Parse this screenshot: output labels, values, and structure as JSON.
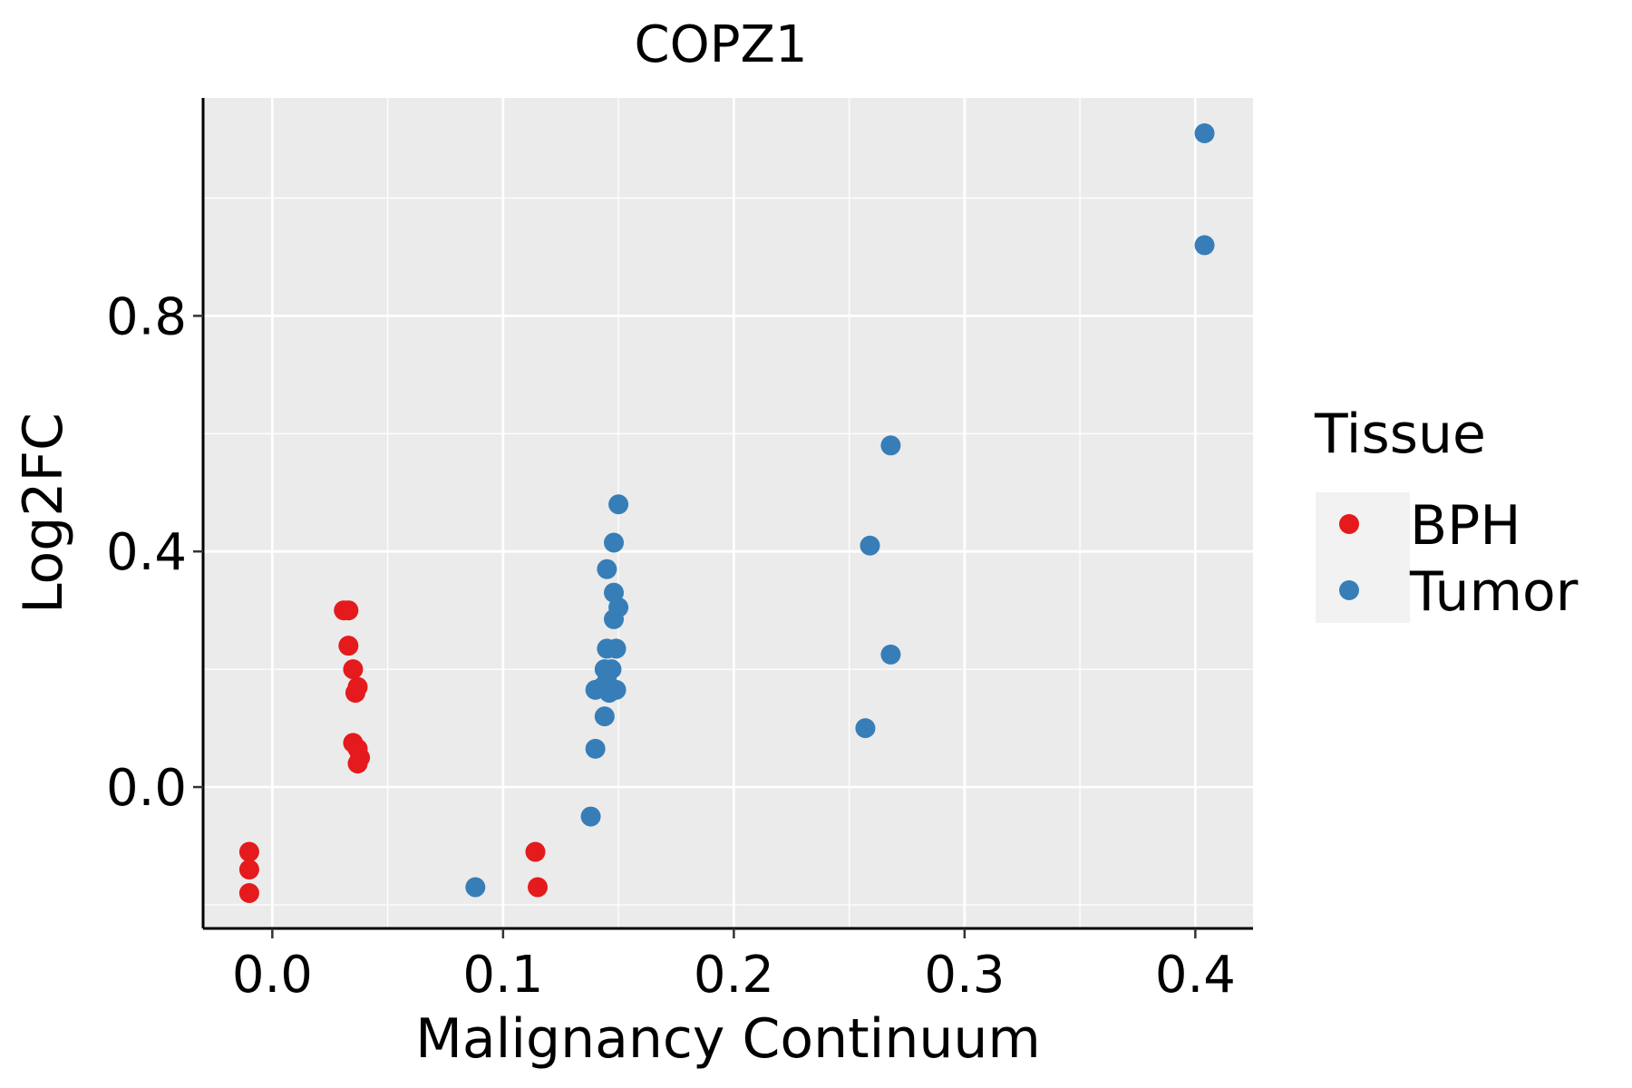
{
  "chart_data": {
    "type": "scatter",
    "title": "COPZ1",
    "xlabel": "Malignancy Continuum",
    "ylabel": "Log2FC",
    "xlim": [
      -0.03,
      0.425
    ],
    "ylim": [
      -0.24,
      1.17
    ],
    "x_ticks": [
      0.0,
      0.1,
      0.2,
      0.3,
      0.4
    ],
    "x_tick_labels": [
      "0.0",
      "0.1",
      "0.2",
      "0.3",
      "0.4"
    ],
    "y_ticks": [
      0.0,
      0.4,
      0.8
    ],
    "y_tick_labels": [
      "0.0",
      "0.4",
      "0.8"
    ],
    "x_minor": [
      0.05,
      0.15,
      0.25,
      0.35
    ],
    "y_minor": [
      -0.2,
      0.2,
      0.6,
      1.0
    ],
    "grid": true,
    "legend": {
      "title": "Tissue",
      "position": "right"
    },
    "series": [
      {
        "name": "BPH",
        "color": "#e41a1c",
        "points": [
          [
            -0.01,
            -0.11
          ],
          [
            -0.01,
            -0.14
          ],
          [
            -0.01,
            -0.18
          ],
          [
            0.031,
            0.3
          ],
          [
            0.033,
            0.3
          ],
          [
            0.033,
            0.24
          ],
          [
            0.035,
            0.2
          ],
          [
            0.037,
            0.17
          ],
          [
            0.036,
            0.16
          ],
          [
            0.035,
            0.075
          ],
          [
            0.037,
            0.065
          ],
          [
            0.038,
            0.05
          ],
          [
            0.037,
            0.04
          ],
          [
            0.114,
            -0.11
          ],
          [
            0.115,
            -0.17
          ]
        ]
      },
      {
        "name": "Tumor",
        "color": "#377eb8",
        "points": [
          [
            0.088,
            -0.17
          ],
          [
            0.138,
            -0.05
          ],
          [
            0.14,
            0.065
          ],
          [
            0.144,
            0.12
          ],
          [
            0.14,
            0.165
          ],
          [
            0.143,
            0.17
          ],
          [
            0.146,
            0.16
          ],
          [
            0.149,
            0.165
          ],
          [
            0.145,
            0.18
          ],
          [
            0.144,
            0.2
          ],
          [
            0.147,
            0.2
          ],
          [
            0.145,
            0.235
          ],
          [
            0.149,
            0.235
          ],
          [
            0.148,
            0.285
          ],
          [
            0.15,
            0.305
          ],
          [
            0.148,
            0.33
          ],
          [
            0.145,
            0.37
          ],
          [
            0.148,
            0.415
          ],
          [
            0.15,
            0.48
          ],
          [
            0.257,
            0.1
          ],
          [
            0.268,
            0.225
          ],
          [
            0.259,
            0.41
          ],
          [
            0.268,
            0.58
          ],
          [
            0.404,
            0.92
          ],
          [
            0.404,
            1.11
          ]
        ]
      }
    ]
  }
}
